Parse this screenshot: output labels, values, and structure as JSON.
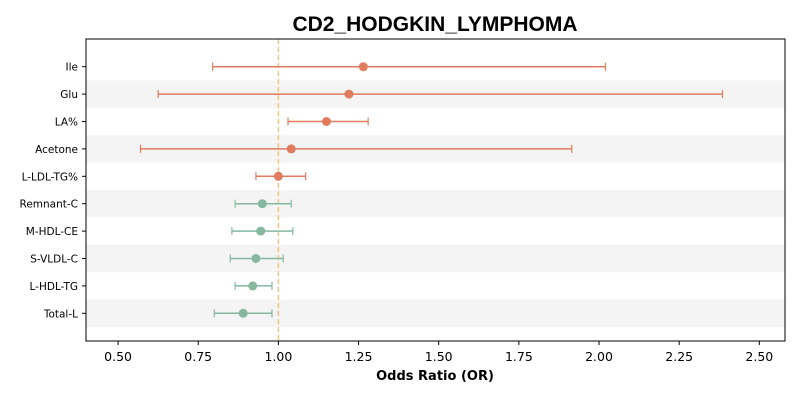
{
  "chart_data": {
    "type": "forest",
    "title": "CD2_HODGKIN_LYMPHOMA",
    "xlabel": "Odds Ratio (OR)",
    "ylabel": "",
    "xlim": [
      0.4,
      2.58
    ],
    "xticks": [
      0.5,
      0.75,
      1.0,
      1.25,
      1.5,
      1.75,
      2.0,
      2.25,
      2.5
    ],
    "xtick_labels": [
      "0.50",
      "0.75",
      "1.00",
      "1.25",
      "1.50",
      "1.75",
      "2.00",
      "2.25",
      "2.50"
    ],
    "reference_line": 1.0,
    "categories": [
      "Ile",
      "Glu",
      "LA%",
      "Acetone",
      "L-LDL-TG%",
      "Remnant-C",
      "M-HDL-CE",
      "S-VLDL-C",
      "L-HDL-TG",
      "Total-L"
    ],
    "or": [
      1.265,
      1.22,
      1.15,
      1.04,
      1.0,
      0.95,
      0.945,
      0.93,
      0.92,
      0.89
    ],
    "ci_low": [
      0.795,
      0.625,
      1.03,
      0.57,
      0.93,
      0.865,
      0.855,
      0.85,
      0.865,
      0.8
    ],
    "ci_high": [
      2.02,
      2.385,
      1.28,
      1.915,
      1.085,
      1.04,
      1.045,
      1.015,
      0.98,
      0.98
    ],
    "colors": {
      "risk": "#e07b5d",
      "protective": "#86b8a0",
      "reference": "#f5c27a",
      "band": "#f4f4f4"
    }
  }
}
